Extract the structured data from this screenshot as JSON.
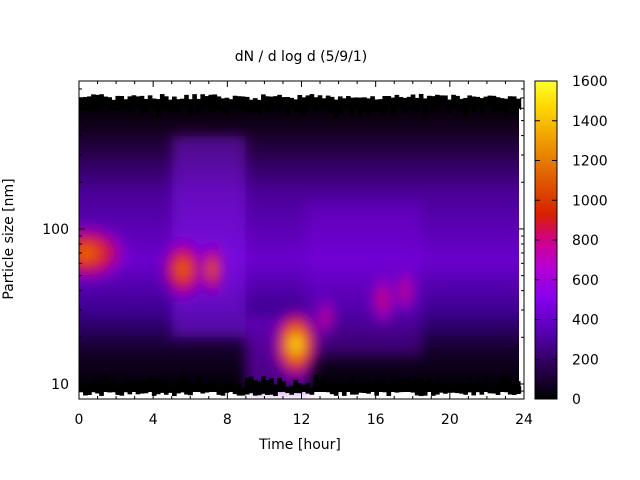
{
  "chart_data": {
    "type": "heatmap",
    "title": "dN / d log d (5/9/1)",
    "xlabel": "Time [hour]",
    "ylabel": "Particle size [nm]",
    "xlim": [
      0,
      24
    ],
    "ylim_nm": [
      8,
      900
    ],
    "y_scale": "log",
    "x_ticks": [
      0,
      4,
      8,
      12,
      16,
      20,
      24
    ],
    "x_tick_labels": [
      "0",
      "4",
      "8",
      "12",
      "16",
      "20",
      "24"
    ],
    "y_ticks": [
      10,
      100
    ],
    "y_tick_labels": [
      "10",
      "100"
    ],
    "colorbar": {
      "range": [
        0,
        1600
      ],
      "ticks": [
        0,
        200,
        400,
        600,
        800,
        1000,
        1200,
        1400,
        1600
      ],
      "tick_labels": [
        "0",
        "200",
        "400",
        "600",
        "800",
        "1000",
        "1200",
        "1400",
        "1600"
      ],
      "colormap": [
        "#000000",
        "#3a007a",
        "#7a00d8",
        "#c000c0",
        "#d8003a",
        "#e05800",
        "#f0a000",
        "#ffe000",
        "#ffff40"
      ]
    },
    "features": [
      {
        "time_hour": 0.4,
        "diameter_nm": 70,
        "value": 870
      },
      {
        "time_hour": 5.6,
        "diameter_nm": 55,
        "value": 900
      },
      {
        "time_hour": 7.2,
        "diameter_nm": 55,
        "value": 800
      },
      {
        "time_hour": 11.7,
        "diameter_nm": 18,
        "value": 1400
      },
      {
        "time_hour": 13.3,
        "diameter_nm": 27,
        "value": 650
      },
      {
        "time_hour": 16.4,
        "diameter_nm": 35,
        "value": 720
      },
      {
        "time_hour": 17.6,
        "diameter_nm": 40,
        "value": 600
      }
    ]
  }
}
